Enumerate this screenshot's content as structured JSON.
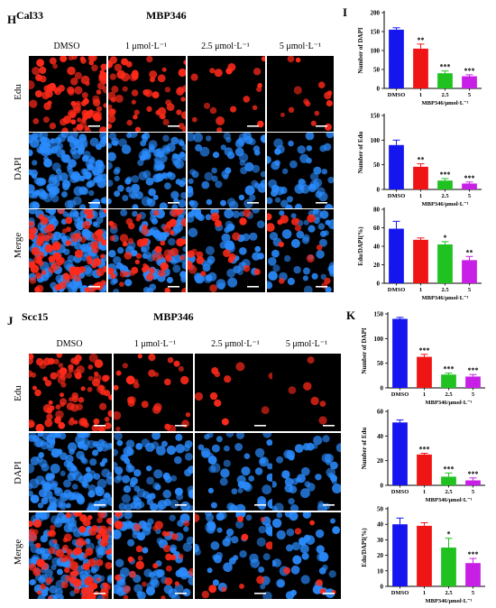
{
  "panels": {
    "H": {
      "letter": "H",
      "cell": "Cal33",
      "drug": "MBP346",
      "columns": [
        "DMSO",
        "1 μmol·L⁻¹",
        "2.5 μmol·L⁻¹",
        "5 μmol·L⁻¹"
      ],
      "rows": [
        "Edu",
        "DAPI",
        "Merge"
      ]
    },
    "J": {
      "letter": "J",
      "cell": "Scc15",
      "drug": "MBP346",
      "columns": [
        "DMSO",
        "1 μmol·L⁻¹",
        "2.5 μmol·L⁻¹",
        "5 μmol·L⁻¹"
      ],
      "rows": [
        "Edu",
        "DAPI",
        "Merge"
      ]
    },
    "I": {
      "letter": "I"
    },
    "K": {
      "letter": "K"
    }
  },
  "colors": {
    "DMSO": "#1515f0",
    "1": "#f01515",
    "2.5": "#1fc21f",
    "5": "#c81fe6",
    "edu": "#ff2a1a",
    "dapi": "#2a8cff"
  },
  "chart_data": [
    {
      "id": "I1",
      "type": "bar",
      "categories": [
        "DMSO",
        "1",
        "2.5",
        "5"
      ],
      "values": [
        155,
        105,
        40,
        32
      ],
      "errors": [
        5,
        12,
        6,
        4
      ],
      "sig": [
        "",
        "**",
        "***",
        "***"
      ],
      "ylabel": "Number of DAPI",
      "xlabel": "MBP346/μmol·L⁻¹",
      "ylim": [
        0,
        200
      ],
      "yticks": [
        0,
        50,
        100,
        150,
        200
      ]
    },
    {
      "id": "I2",
      "type": "bar",
      "categories": [
        "DMSO",
        "1",
        "2.5",
        "5"
      ],
      "values": [
        90,
        46,
        18,
        12
      ],
      "errors": [
        10,
        6,
        4,
        3
      ],
      "sig": [
        "",
        "**",
        "***",
        "***"
      ],
      "ylabel": "Number of Edu",
      "xlabel": "MBP346/μmol·L⁻¹",
      "ylim": [
        0,
        150
      ],
      "yticks": [
        0,
        50,
        100,
        150
      ]
    },
    {
      "id": "I3",
      "type": "bar",
      "categories": [
        "DMSO",
        "1",
        "2.5",
        "5"
      ],
      "values": [
        59,
        47,
        42,
        25
      ],
      "errors": [
        8,
        2,
        3,
        4
      ],
      "sig": [
        "",
        "",
        "*",
        "**"
      ],
      "ylabel": "Edu/DAPI(%)",
      "xlabel": "MBP346/μmol·L⁻¹",
      "ylim": [
        0,
        80
      ],
      "yticks": [
        0,
        20,
        40,
        60,
        80
      ]
    },
    {
      "id": "K1",
      "type": "bar",
      "categories": [
        "DMSO",
        "1",
        "2.5",
        "5"
      ],
      "values": [
        140,
        63,
        27,
        23
      ],
      "errors": [
        3,
        5,
        3,
        4
      ],
      "sig": [
        "",
        "***",
        "***",
        "***"
      ],
      "ylabel": "Number of DAPI",
      "xlabel": "MBP346/μmol·L⁻¹",
      "ylim": [
        0,
        150
      ],
      "yticks": [
        0,
        50,
        100,
        150
      ]
    },
    {
      "id": "K2",
      "type": "bar",
      "categories": [
        "DMSO",
        "1",
        "2.5",
        "5"
      ],
      "values": [
        51,
        25,
        7,
        4
      ],
      "errors": [
        2,
        1,
        3,
        2
      ],
      "sig": [
        "",
        "***",
        "***",
        "***"
      ],
      "ylabel": "Number of Edu",
      "xlabel": "MBP346/μmol·L⁻¹",
      "ylim": [
        0,
        60
      ],
      "yticks": [
        0,
        20,
        40,
        60
      ]
    },
    {
      "id": "K3",
      "type": "bar",
      "categories": [
        "DMSO",
        "1",
        "2.5",
        "5"
      ],
      "values": [
        40,
        39,
        25,
        15
      ],
      "errors": [
        4,
        2,
        6,
        3
      ],
      "sig": [
        "",
        "",
        "*",
        "***"
      ],
      "ylabel": "Edu/DAPI(%)",
      "xlabel": "MBP346/μmol·L⁻¹",
      "ylim": [
        0,
        50
      ],
      "yticks": [
        0,
        10,
        20,
        30,
        40,
        50
      ]
    }
  ]
}
